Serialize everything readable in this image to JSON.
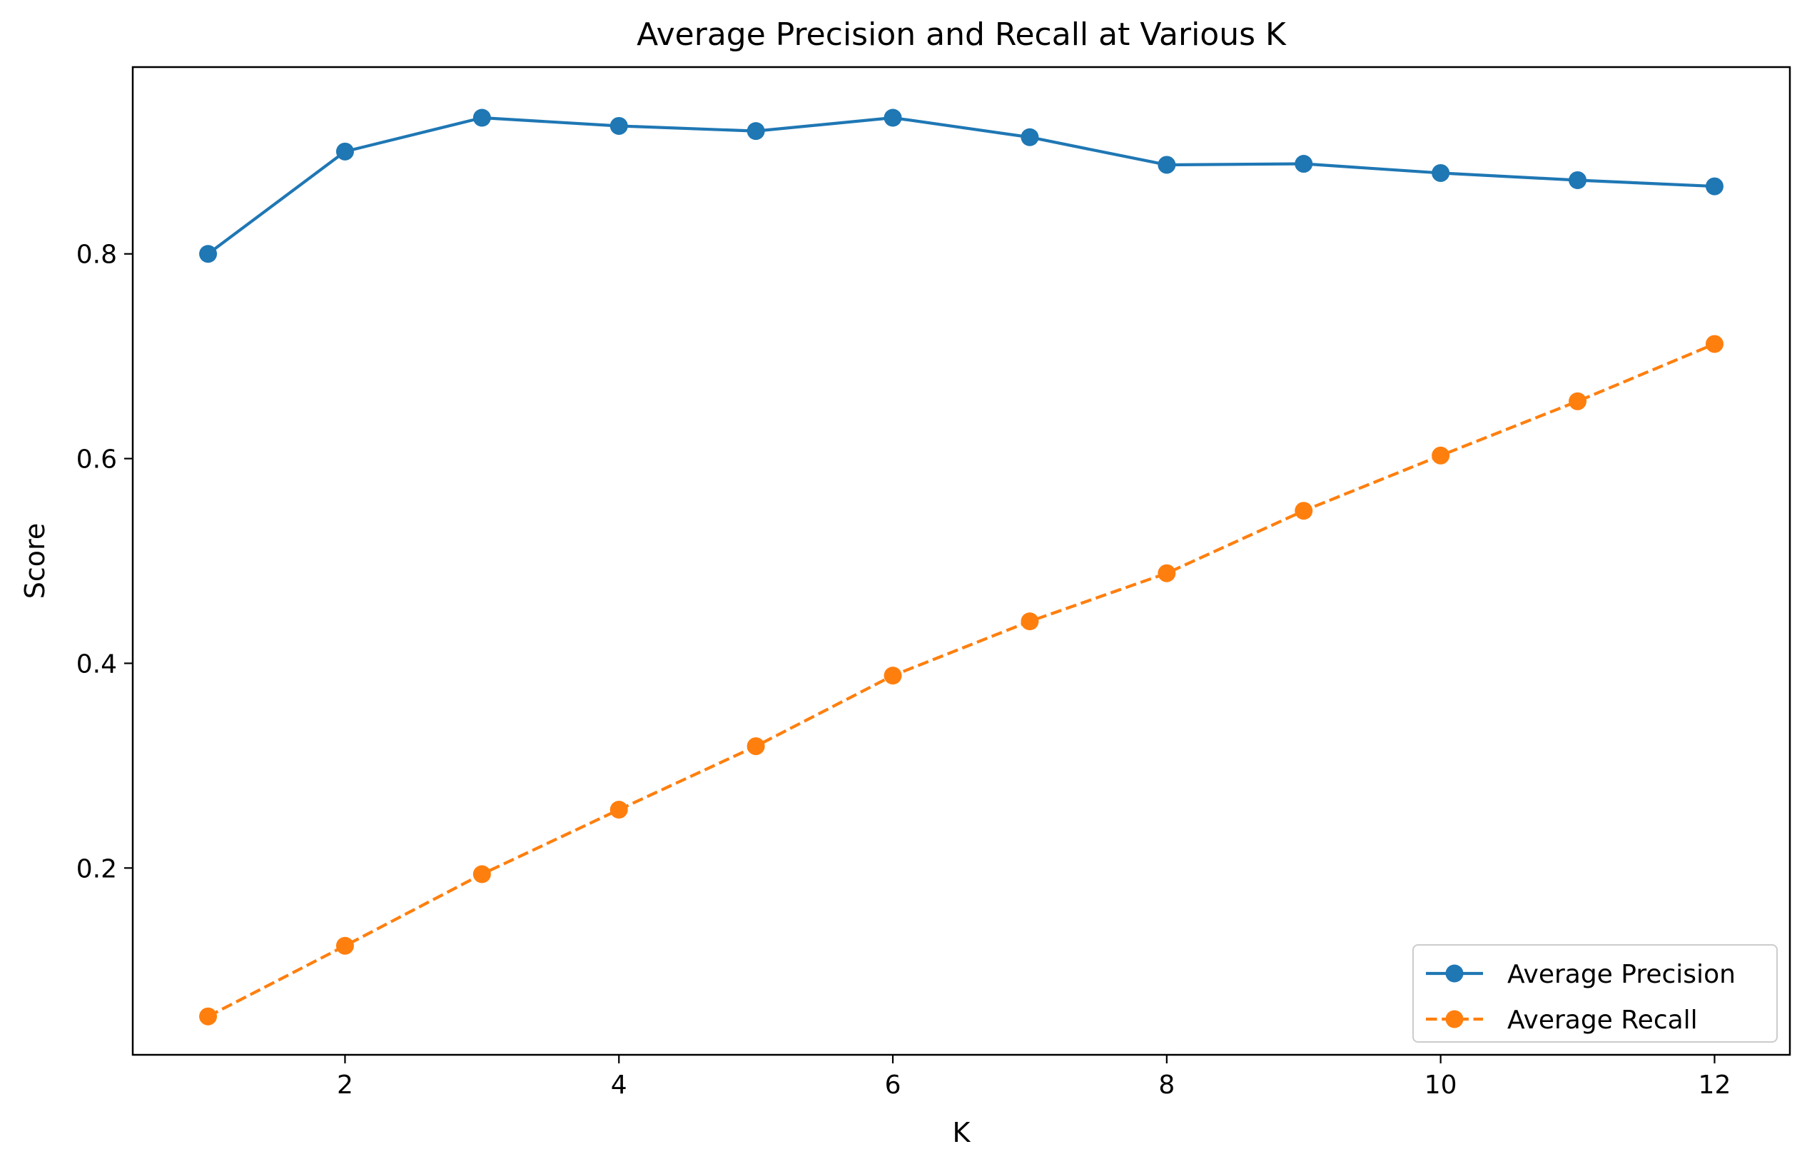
{
  "chart_data": {
    "type": "line",
    "title": "Average Precision and Recall at Various K",
    "xlabel": "K",
    "ylabel": "Score",
    "x": [
      1,
      2,
      3,
      4,
      5,
      6,
      7,
      8,
      9,
      10,
      11,
      12
    ],
    "xlim": [
      0.45,
      12.55
    ],
    "ylim": [
      0.0175,
      0.9825
    ],
    "xticks": [
      2,
      4,
      6,
      8,
      10,
      12
    ],
    "xtick_labels": [
      "2",
      "4",
      "6",
      "8",
      "10",
      "12"
    ],
    "yticks": [
      0.2,
      0.4,
      0.6,
      0.8
    ],
    "ytick_labels": [
      "0.2",
      "0.4",
      "0.6",
      "0.8"
    ],
    "grid": false,
    "legend_position": "lower-right",
    "series": [
      {
        "name": "Average Precision",
        "color": "#1f77b4",
        "linestyle": "solid",
        "marker": "circle",
        "values": [
          0.8,
          0.9,
          0.933,
          0.925,
          0.92,
          0.933,
          0.914,
          0.887,
          0.888,
          0.879,
          0.872,
          0.866
        ]
      },
      {
        "name": "Average Recall",
        "color": "#ff7f0e",
        "linestyle": "dashed",
        "marker": "circle",
        "values": [
          0.055,
          0.124,
          0.194,
          0.257,
          0.319,
          0.388,
          0.441,
          0.488,
          0.549,
          0.603,
          0.656,
          0.712
        ]
      }
    ]
  }
}
